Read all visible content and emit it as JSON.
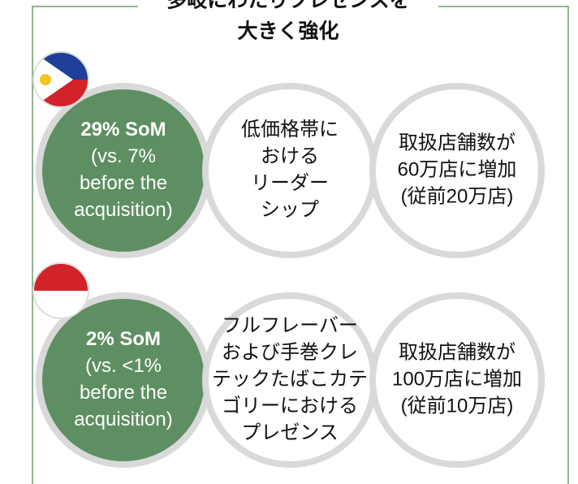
{
  "title": [
    "多岐にわたりプレゼンスを",
    "大きく強化"
  ],
  "rows": [
    {
      "cells": [
        {
          "lines": [
            "29% SoM",
            "(vs. 7%",
            "before the",
            "acquisition)"
          ]
        },
        {
          "lines": [
            "低価格帯に",
            "おける",
            "リーダー",
            "シップ"
          ]
        },
        {
          "lines": [
            "取扱店舗数が",
            "60万店に増加",
            "(従前20万店)"
          ]
        }
      ]
    },
    {
      "cells": [
        {
          "lines": [
            "2% SoM",
            "(vs. <1%",
            "before the",
            "acquisition)"
          ]
        },
        {
          "lines": [
            "フルフレーバー",
            "および手巻クレ",
            "テックたばこカテ",
            "ゴリーにおける",
            "プレゼンス"
          ]
        },
        {
          "lines": [
            "取扱店舗数が",
            "100万店に増加",
            "(従前10万店)"
          ]
        }
      ]
    }
  ]
}
